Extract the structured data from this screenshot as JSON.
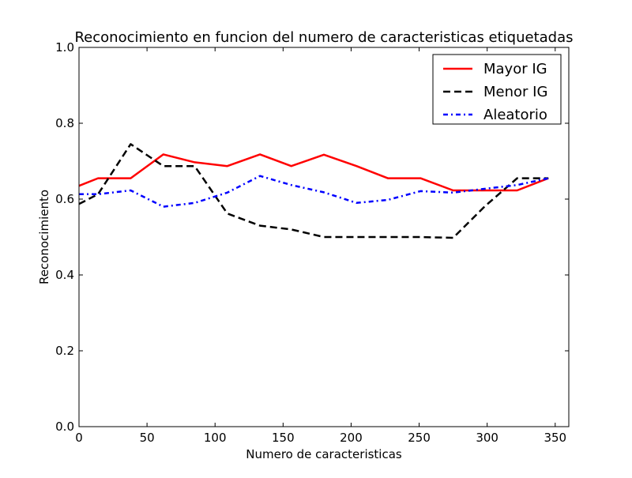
{
  "chart_data": {
    "type": "line",
    "title": "Reconocimiento en funcion del numero de caracteristicas etiquetadas",
    "xlabel": "Numero de caracteristicas",
    "ylabel": "Reconocimiento",
    "xlim": [
      0,
      360
    ],
    "ylim": [
      0.0,
      1.0
    ],
    "xticks": [
      0,
      50,
      100,
      150,
      200,
      250,
      300,
      350
    ],
    "yticks": [
      0.0,
      0.2,
      0.4,
      0.6,
      0.8,
      1.0
    ],
    "xtick_labels": [
      "0",
      "50",
      "100",
      "150",
      "200",
      "250",
      "300",
      "350"
    ],
    "ytick_labels": [
      "0.0",
      "0.2",
      "0.4",
      "0.6",
      "0.8",
      "1.0"
    ],
    "grid": false,
    "legend_position": "top-right",
    "series": [
      {
        "name": "Mayor IG",
        "color": "#ff0000",
        "style": "solid",
        "x": [
          0,
          14,
          38,
          62,
          85,
          109,
          133,
          156,
          180,
          204,
          227,
          251,
          275,
          298,
          322,
          345
        ],
        "y": [
          0.635,
          0.655,
          0.655,
          0.718,
          0.697,
          0.687,
          0.718,
          0.687,
          0.717,
          0.687,
          0.655,
          0.655,
          0.623,
          0.623,
          0.623,
          0.655
        ]
      },
      {
        "name": "Menor IG",
        "color": "#000000",
        "style": "dashed",
        "x": [
          0,
          14,
          38,
          62,
          85,
          109,
          133,
          156,
          180,
          204,
          227,
          251,
          275,
          298,
          322,
          345
        ],
        "y": [
          0.587,
          0.613,
          0.745,
          0.687,
          0.687,
          0.562,
          0.53,
          0.52,
          0.5,
          0.5,
          0.5,
          0.5,
          0.498,
          0.58,
          0.655,
          0.655
        ]
      },
      {
        "name": "Aleatorio",
        "color": "#0000ff",
        "style": "dashdot",
        "x": [
          0,
          14,
          38,
          62,
          85,
          109,
          133,
          156,
          180,
          204,
          227,
          251,
          275,
          298,
          322,
          345
        ],
        "y": [
          0.613,
          0.613,
          0.623,
          0.58,
          0.59,
          0.617,
          0.661,
          0.637,
          0.618,
          0.59,
          0.598,
          0.621,
          0.617,
          0.627,
          0.637,
          0.655
        ]
      }
    ]
  }
}
